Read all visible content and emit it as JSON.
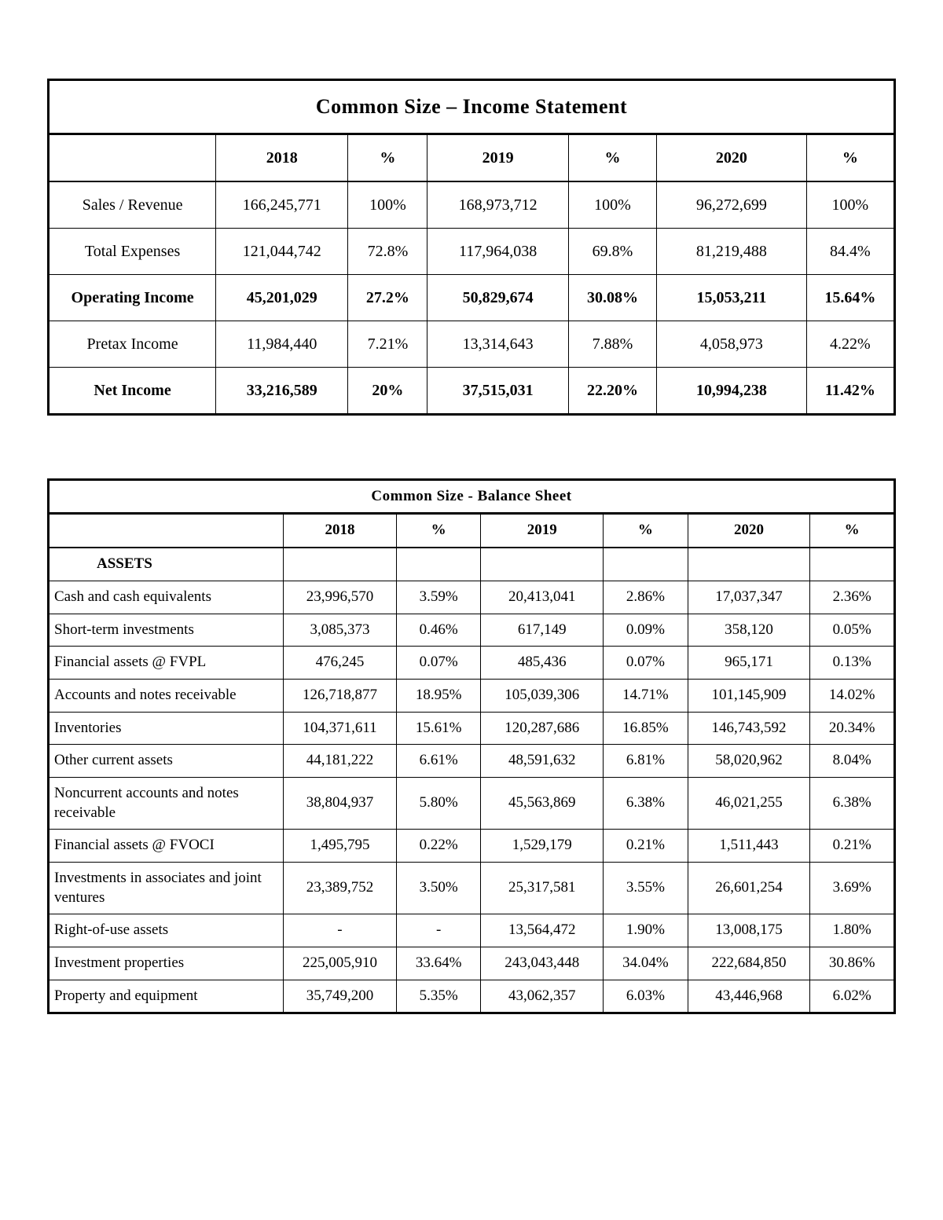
{
  "income_table": {
    "title": "Common  Size – Income  Statement",
    "headers": [
      "",
      "2018",
      "%",
      "2019",
      "%",
      "2020",
      "%"
    ],
    "rows": [
      {
        "label": "Sales / Revenue",
        "bold": false,
        "cells": [
          "166,245,771",
          "100%",
          "168,973,712",
          "100%",
          "96,272,699",
          "100%"
        ]
      },
      {
        "label": "Total Expenses",
        "bold": false,
        "cells": [
          "121,044,742",
          "72.8%",
          "117,964,038",
          "69.8%",
          "81,219,488",
          "84.4%"
        ]
      },
      {
        "label": "Operating Income",
        "bold": true,
        "cells": [
          "45,201,029",
          "27.2%",
          "50,829,674",
          "30.08%",
          "15,053,211",
          "15.64%"
        ]
      },
      {
        "label": "Pretax Income",
        "bold": false,
        "cells": [
          "11,984,440",
          "7.21%",
          "13,314,643",
          "7.88%",
          "4,058,973",
          "4.22%"
        ]
      },
      {
        "label": "Net Income",
        "bold": true,
        "cells": [
          "33,216,589",
          "20%",
          "37,515,031",
          "22.20%",
          "10,994,238",
          "11.42%"
        ]
      }
    ]
  },
  "balance_table": {
    "title": "Common Size - Balance Sheet",
    "headers": [
      "",
      "2018",
      "%",
      "2019",
      "%",
      "2020",
      "%"
    ],
    "section_header": "ASSETS",
    "rows": [
      {
        "label": "Cash and cash equivalents",
        "cells": [
          "23,996,570",
          "3.59%",
          "20,413,041",
          "2.86%",
          "17,037,347",
          "2.36%"
        ]
      },
      {
        "label": "Short-term investments",
        "cells": [
          "3,085,373",
          "0.46%",
          "617,149",
          "0.09%",
          "358,120",
          "0.05%"
        ]
      },
      {
        "label": "Financial assets @ FVPL",
        "cells": [
          "476,245",
          "0.07%",
          "485,436",
          "0.07%",
          "965,171",
          "0.13%"
        ]
      },
      {
        "label": "Accounts and notes receivable",
        "cells": [
          "126,718,877",
          "18.95%",
          "105,039,306",
          "14.71%",
          "101,145,909",
          "14.02%"
        ]
      },
      {
        "label": "Inventories",
        "cells": [
          "104,371,611",
          "15.61%",
          "120,287,686",
          "16.85%",
          "146,743,592",
          "20.34%"
        ]
      },
      {
        "label": "Other current assets",
        "cells": [
          "44,181,222",
          "6.61%",
          "48,591,632",
          "6.81%",
          "58,020,962",
          "8.04%"
        ]
      },
      {
        "label": "Noncurrent accounts and notes receivable",
        "cells": [
          "38,804,937",
          "5.80%",
          "45,563,869",
          "6.38%",
          "46,021,255",
          "6.38%"
        ]
      },
      {
        "label": "Financial assets @ FVOCI",
        "cells": [
          "1,495,795",
          "0.22%",
          "1,529,179",
          "0.21%",
          "1,511,443",
          "0.21%"
        ]
      },
      {
        "label": "Investments in associates and joint ventures",
        "cells": [
          "23,389,752",
          "3.50%",
          "25,317,581",
          "3.55%",
          "26,601,254",
          "3.69%"
        ]
      },
      {
        "label": "Right-of-use assets",
        "cells": [
          "-",
          "-",
          "13,564,472",
          "1.90%",
          "13,008,175",
          "1.80%"
        ]
      },
      {
        "label": "Investment properties",
        "cells": [
          "225,005,910",
          "33.64%",
          "243,043,448",
          "34.04%",
          "222,684,850",
          "30.86%"
        ]
      },
      {
        "label": "Property and equipment",
        "cells": [
          "35,749,200",
          "5.35%",
          "43,062,357",
          "6.03%",
          "43,446,968",
          "6.02%"
        ]
      }
    ]
  }
}
